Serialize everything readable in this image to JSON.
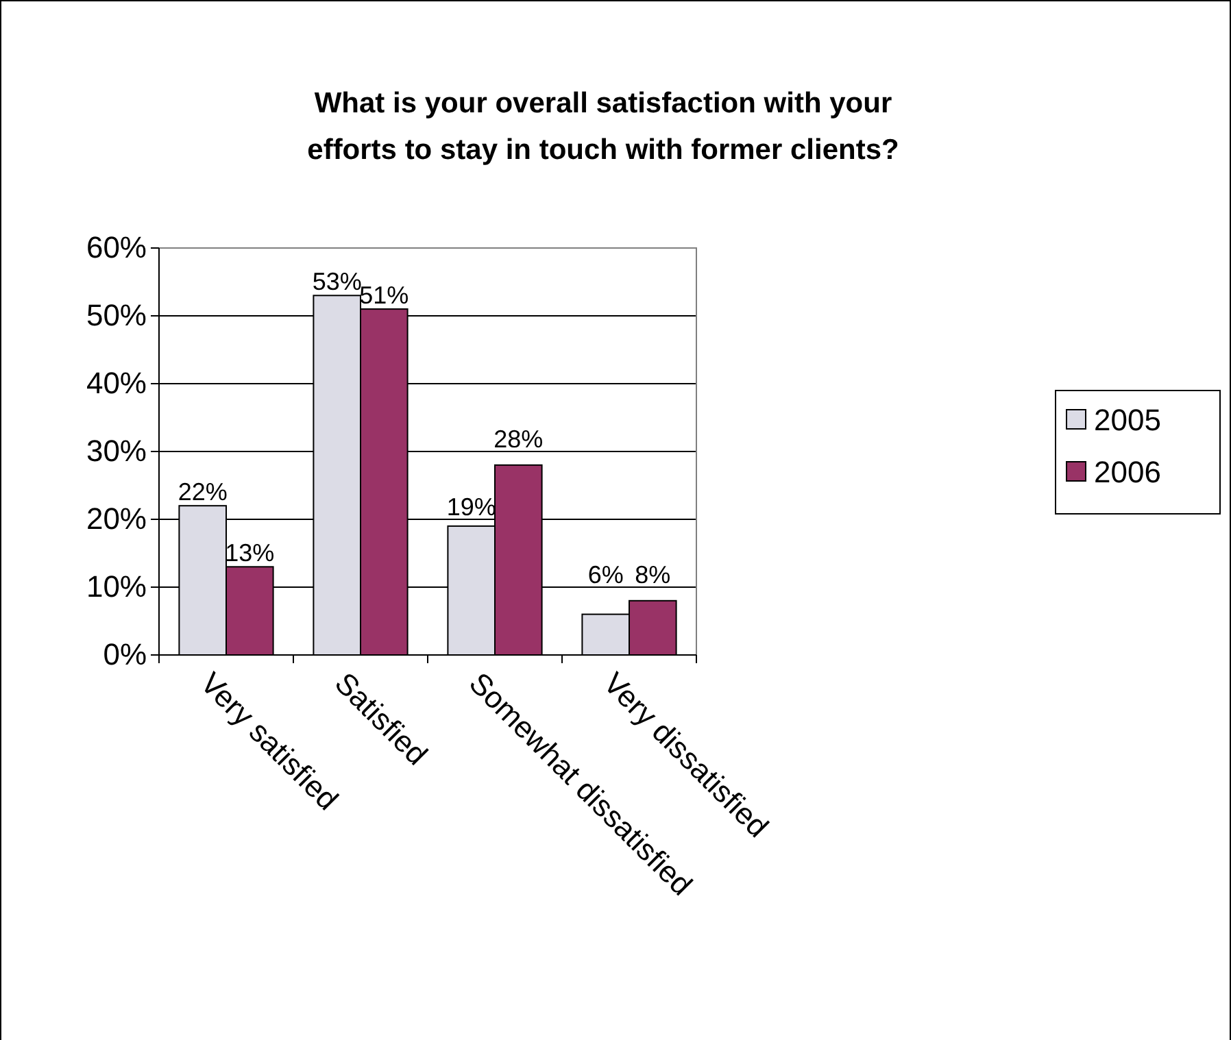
{
  "chart_data": {
    "type": "bar",
    "title": "What is your overall satisfaction with your efforts to stay in touch with former clients?",
    "categories": [
      "Very satisfied",
      "Satisfied",
      "Somewhat dissatisfied",
      "Very dissatisfied"
    ],
    "series": [
      {
        "name": "2005",
        "color": "#dcdce6",
        "values": [
          22,
          53,
          19,
          6
        ],
        "value_labels": [
          "22%",
          "53%",
          "19%",
          "6%"
        ]
      },
      {
        "name": "2006",
        "color": "#993366",
        "values": [
          13,
          51,
          28,
          8
        ],
        "value_labels": [
          "13%",
          "51%",
          "28%",
          "8%"
        ]
      }
    ],
    "ylim": [
      0,
      60
    ],
    "yticks": [
      {
        "value": 0,
        "label": "0%"
      },
      {
        "value": 10,
        "label": "10%"
      },
      {
        "value": 20,
        "label": "20%"
      },
      {
        "value": 30,
        "label": "30%"
      },
      {
        "value": 40,
        "label": "40%"
      },
      {
        "value": 50,
        "label": "50%"
      },
      {
        "value": 60,
        "label": "60%"
      }
    ],
    "grid": "y",
    "legend": "right"
  }
}
